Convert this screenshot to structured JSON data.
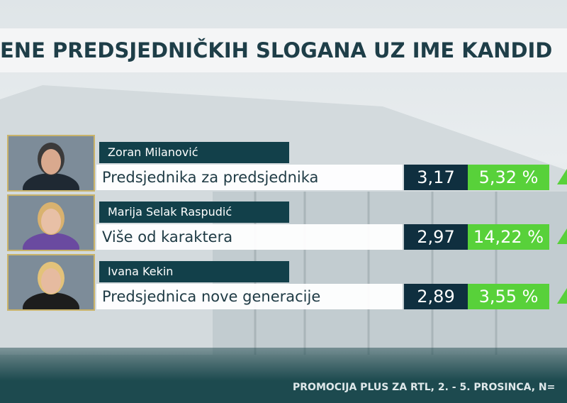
{
  "header": {
    "title": "ENE PREDSJEDNIČKIH SLOGANA UZ IME KANDID"
  },
  "rows": [
    {
      "name": "Zoran Milanović",
      "slogan": "Predsjednika za predsjednika",
      "score": "3,17",
      "change": "5,32 %"
    },
    {
      "name": "Marija Selak Raspudić",
      "slogan": "Više od karaktera",
      "score": "2,97",
      "change": "14,22 %"
    },
    {
      "name": "Ivana Kekin",
      "slogan": "Predsjednica nove generacije",
      "score": "2,89",
      "change": "3,55 %"
    }
  ],
  "footer": {
    "source": "PROMOCIJA PLUS ZA RTL, 2. - 5. PROSINCA, N="
  }
}
